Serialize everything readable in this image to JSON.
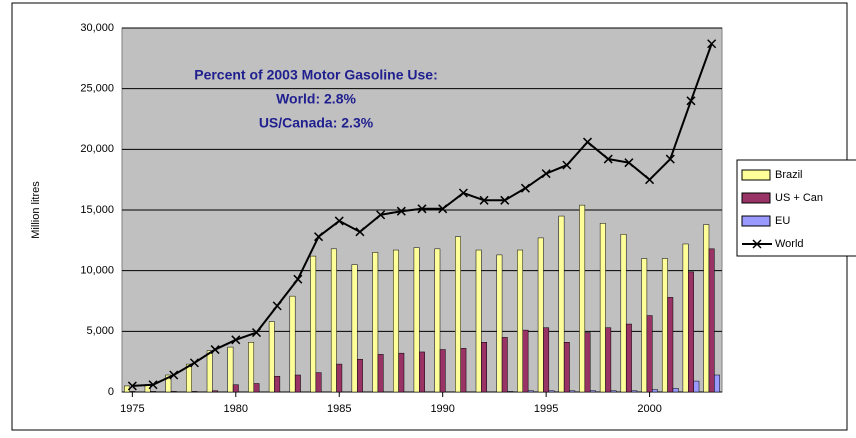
{
  "chart_data": {
    "type": "bar-line",
    "y_label": "Million litres",
    "annotations": [
      "Percent of 2003 Motor Gasoline Use:",
      "World: 2.8%",
      "US/Canada: 2.3%"
    ],
    "x": [
      1975,
      1976,
      1977,
      1978,
      1979,
      1980,
      1981,
      1982,
      1983,
      1984,
      1985,
      1986,
      1987,
      1988,
      1989,
      1990,
      1991,
      1992,
      1993,
      1994,
      1995,
      1996,
      1997,
      1998,
      1999,
      2000,
      2001,
      2002,
      2003
    ],
    "xlim": [
      1974.5,
      2003.5
    ],
    "xticks": [
      1975,
      1980,
      1985,
      1990,
      1995,
      2000
    ],
    "ylim": [
      0,
      30000
    ],
    "yticks": [
      0,
      {
        "value": 5000,
        "label": "5,000"
      },
      {
        "value": 10000,
        "label": "10,000"
      },
      {
        "value": 15000,
        "label": "15,000"
      },
      {
        "value": 20000,
        "label": "20,000"
      },
      {
        "value": 25000,
        "label": "25,000"
      },
      {
        "value": 30000,
        "label": "30,000"
      }
    ],
    "grid": true,
    "series": [
      {
        "name": "Brazil",
        "color": "#ffff99",
        "kind": "bar",
        "values": [
          500,
          600,
          1400,
          2300,
          3400,
          3700,
          4100,
          5800,
          7900,
          11200,
          11800,
          10500,
          11500,
          11700,
          11900,
          11800,
          12800,
          11700,
          11300,
          11700,
          12700,
          14500,
          15400,
          13900,
          13000,
          11000,
          11000,
          12200,
          13800
        ]
      },
      {
        "name": "US + Can",
        "color": "#993366",
        "kind": "bar",
        "values": [
          50,
          50,
          50,
          50,
          100,
          600,
          700,
          1300,
          1400,
          1600,
          2300,
          2700,
          3100,
          3200,
          3300,
          3500,
          3600,
          4100,
          4500,
          5100,
          5300,
          4100,
          4900,
          5300,
          5600,
          6300,
          7800,
          9900,
          11800
        ]
      },
      {
        "name": "EU",
        "color": "#9999ff",
        "kind": "bar",
        "values": [
          0,
          0,
          0,
          0,
          0,
          0,
          0,
          0,
          0,
          0,
          0,
          0,
          0,
          0,
          0,
          0,
          0,
          0,
          50,
          100,
          100,
          100,
          100,
          100,
          100,
          200,
          300,
          900,
          1400
        ]
      },
      {
        "name": "World",
        "color": "#000000",
        "kind": "line",
        "values": [
          500,
          600,
          1400,
          2400,
          3500,
          4300,
          4900,
          7100,
          9300,
          12800,
          14100,
          13200,
          14600,
          14900,
          15100,
          15100,
          16400,
          15800,
          15800,
          16800,
          18000,
          18700,
          20600,
          19200,
          18900,
          17500,
          19200,
          24000,
          28700
        ]
      }
    ]
  }
}
